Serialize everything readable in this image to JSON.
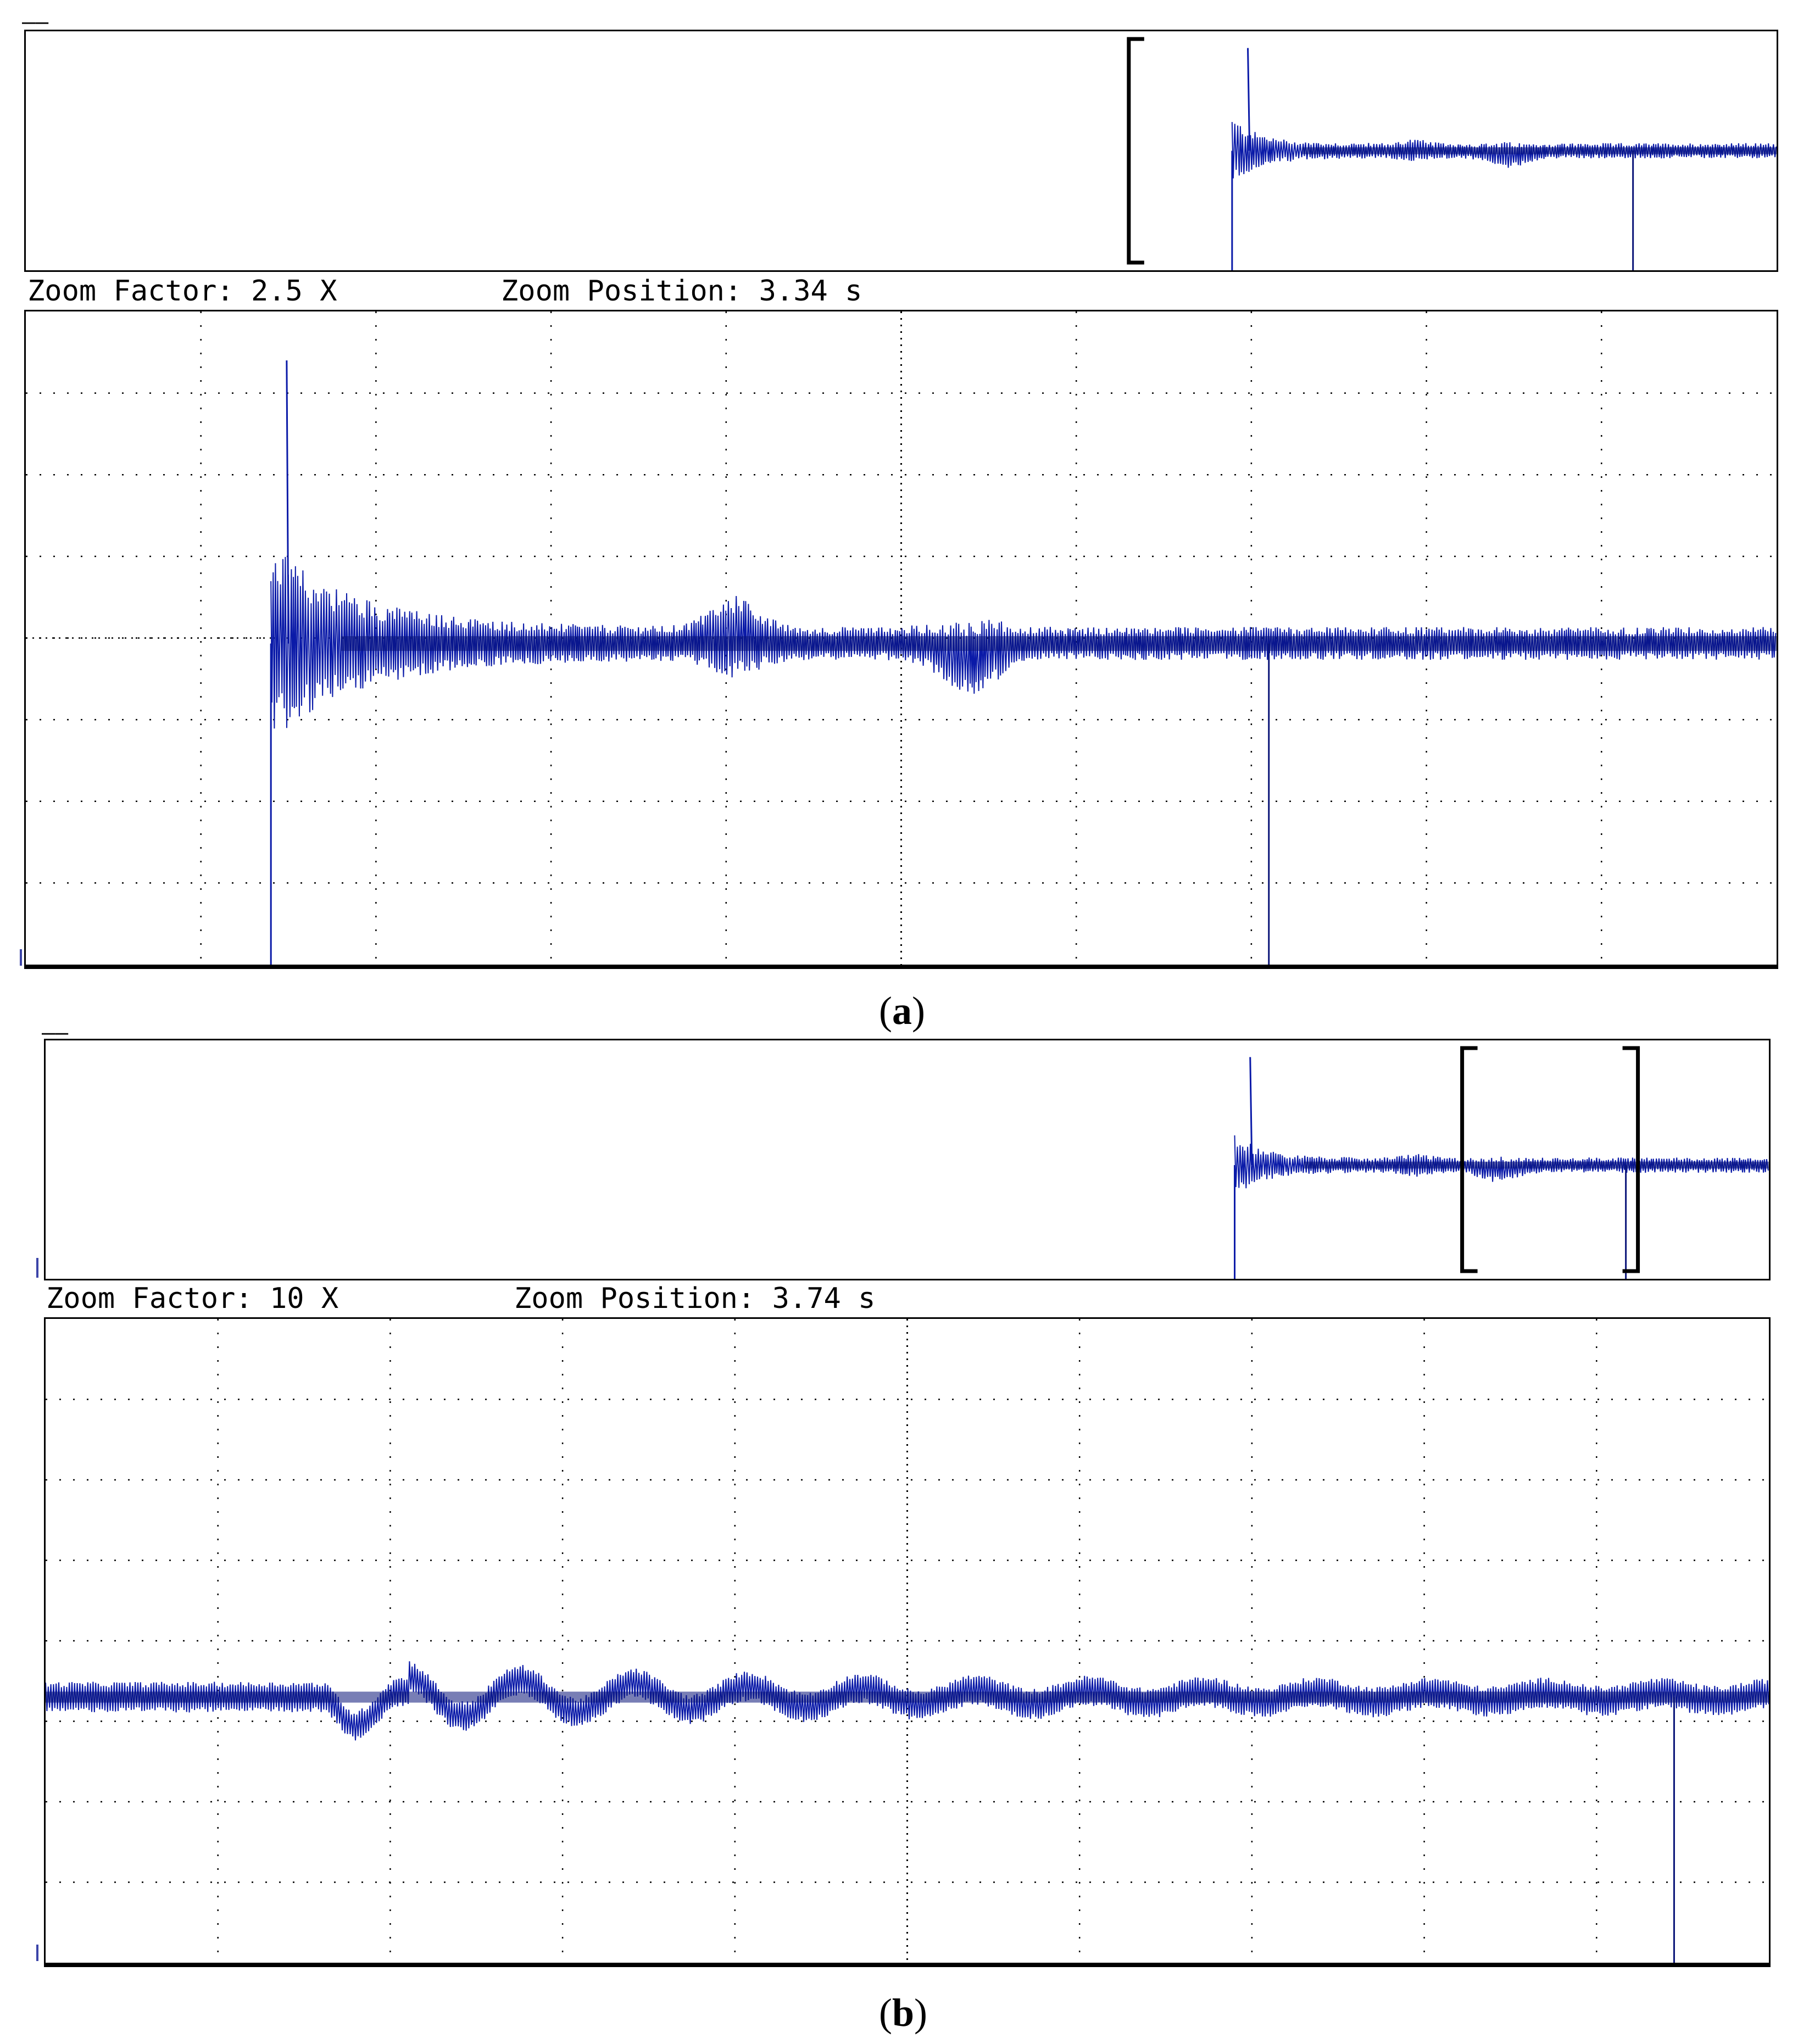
{
  "panels": [
    {
      "id": "a",
      "caption_label": "a",
      "zoom_factor_text": "Zoom Factor: 2.5 X",
      "zoom_position_text": "Zoom Position: 3.34 s"
    },
    {
      "id": "b",
      "caption_label": "b",
      "zoom_factor_text": "Zoom Factor: 10 X",
      "zoom_position_text": "Zoom Position: 3.74 s"
    }
  ],
  "colors": {
    "trace": "#0a1aa8",
    "trace_dark": "#0a1478",
    "trigger_marker": "#f59a10",
    "grid": "#000000"
  },
  "chart_data": [
    {
      "type": "line",
      "name": "overview-a",
      "grid": false,
      "x_range": [
        0,
        1
      ],
      "y_range": [
        0,
        1
      ],
      "zoom_window": [
        0.63,
        0.66
      ],
      "features": {
        "step_x": 0.689,
        "base": 0.5,
        "overshoot": 0.93,
        "dip_x": 0.918
      }
    },
    {
      "type": "line",
      "name": "zoom-a",
      "grid": true,
      "divisions": [
        10,
        8
      ],
      "x_range": [
        0,
        10
      ],
      "y_range": [
        -4,
        4
      ],
      "features": {
        "step_x": 1.4,
        "base": 0.0,
        "overshoot": 3.4,
        "dip_x": 7.1
      }
    },
    {
      "type": "line",
      "name": "overview-b",
      "grid": false,
      "x_range": [
        0,
        1
      ],
      "y_range": [
        0,
        1
      ],
      "zoom_window": [
        0.822,
        0.924
      ],
      "features": {
        "step_x": 0.69,
        "base": 0.5,
        "overshoot": 0.93,
        "dip_x": 0.917
      }
    },
    {
      "type": "line",
      "name": "zoom-b",
      "grid": true,
      "divisions": [
        10,
        8
      ],
      "x_range": [
        0,
        10
      ],
      "y_range": [
        -4,
        4
      ],
      "features": {
        "osc_start": 1.6,
        "base": -0.7,
        "dip_x": 9.45
      }
    }
  ]
}
